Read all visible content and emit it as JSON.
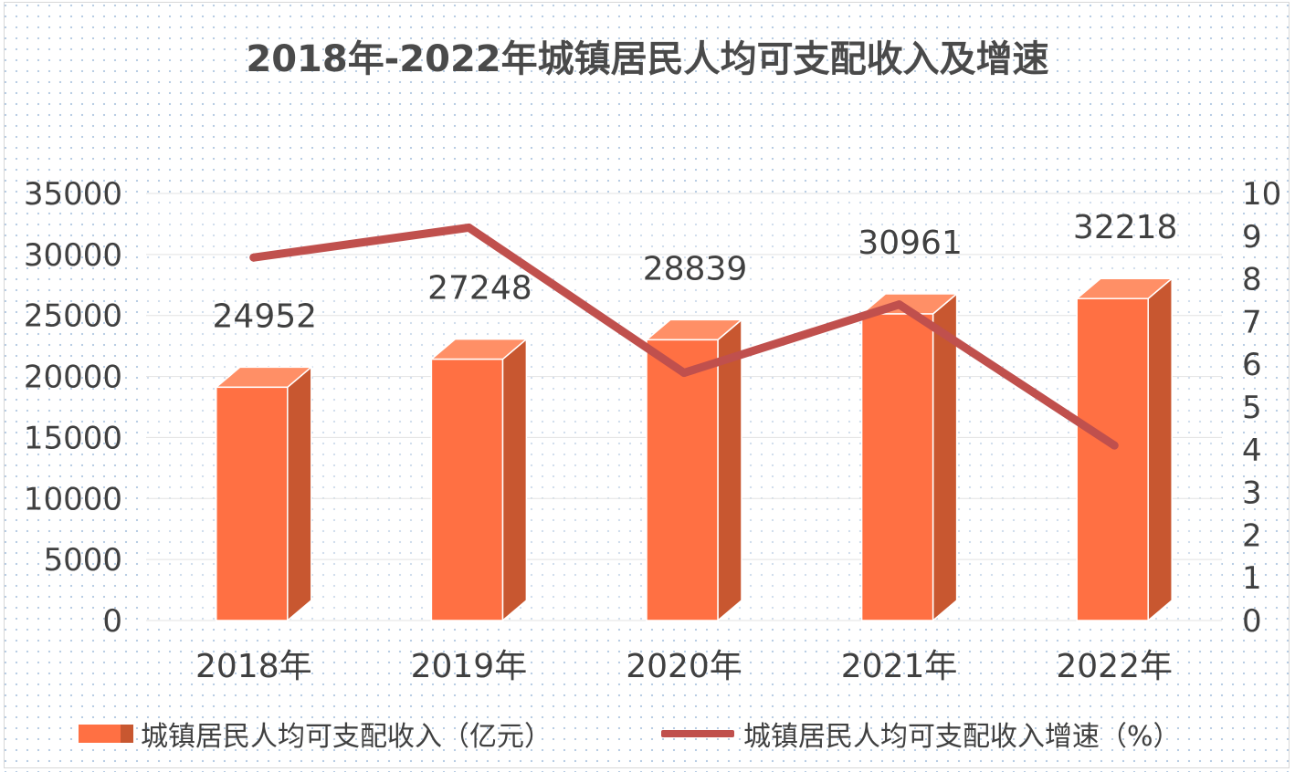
{
  "chart_data": {
    "type": "bar",
    "title": "2018年-2022年城镇居民人均可支配收入及增速",
    "categories": [
      "2018年",
      "2019年",
      "2020年",
      "2021年",
      "2022年"
    ],
    "series": [
      {
        "name": "城镇居民人均可支配收入（亿元）",
        "type": "bar",
        "axis": "left",
        "values": [
          24952,
          27248,
          28839,
          30961,
          32218
        ],
        "data_labels": [
          "24952",
          "27248",
          "28839",
          "30961",
          "32218"
        ],
        "color": "#ff7043"
      },
      {
        "name": "城镇居民人均可支配收入增速（%）",
        "type": "line",
        "axis": "right",
        "values": [
          8.5,
          9.2,
          5.8,
          7.4,
          4.1
        ],
        "color": "#c0504d"
      }
    ],
    "y_left": {
      "ylim": [
        0,
        35000
      ],
      "ticks": [
        "0",
        "5000",
        "10000",
        "15000",
        "20000",
        "25000",
        "30000",
        "35000"
      ]
    },
    "y_right": {
      "ylim": [
        0,
        10
      ],
      "ticks": [
        "0",
        "1",
        "2",
        "3",
        "4",
        "5",
        "6",
        "7",
        "8",
        "9",
        "10"
      ]
    },
    "xlabel": "",
    "ylabel": "",
    "grid": true,
    "legend_position": "bottom",
    "bar_style": "3d-column"
  }
}
